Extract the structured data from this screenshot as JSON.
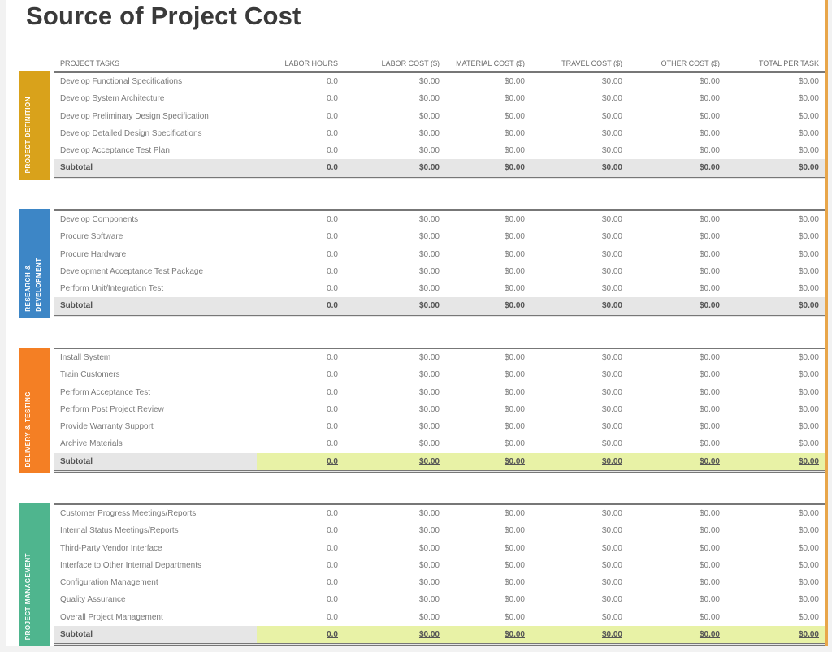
{
  "title": "Source of Project Cost",
  "columns": {
    "task": "PROJECT TASKS",
    "labor_hours": "LABOR HOURS",
    "labor_cost": "LABOR COST ($)",
    "material_cost": "MATERIAL COST ($)",
    "travel_cost": "TRAVEL COST ($)",
    "other_cost": "OTHER COST ($)",
    "total": "TOTAL PER TASK"
  },
  "colors": {
    "phase1": "#d9a21b",
    "phase2": "#3d86c6",
    "phase3": "#f47f24",
    "phase4": "#4fb58e",
    "subtotal_bg": "#e6e6e6",
    "highlight": "#e8f2a6"
  },
  "sections": [
    {
      "label": "Project Definition",
      "rows": [
        {
          "task": "Develop Functional Specifications",
          "hours": "0.0",
          "labor": "$0.00",
          "material": "$0.00",
          "travel": "$0.00",
          "other": "$0.00",
          "total": "$0.00"
        },
        {
          "task": "Develop System Architecture",
          "hours": "0.0",
          "labor": "$0.00",
          "material": "$0.00",
          "travel": "$0.00",
          "other": "$0.00",
          "total": "$0.00"
        },
        {
          "task": "Develop Preliminary Design Specification",
          "hours": "0.0",
          "labor": "$0.00",
          "material": "$0.00",
          "travel": "$0.00",
          "other": "$0.00",
          "total": "$0.00"
        },
        {
          "task": "Develop Detailed Design Specifications",
          "hours": "0.0",
          "labor": "$0.00",
          "material": "$0.00",
          "travel": "$0.00",
          "other": "$0.00",
          "total": "$0.00"
        },
        {
          "task": "Develop Acceptance Test Plan",
          "hours": "0.0",
          "labor": "$0.00",
          "material": "$0.00",
          "travel": "$0.00",
          "other": "$0.00",
          "total": "$0.00"
        }
      ],
      "subtotal": {
        "task": "Subtotal",
        "hours": "0.0",
        "labor": "$0.00",
        "material": "$0.00",
        "travel": "$0.00",
        "other": "$0.00",
        "total": "$0.00"
      }
    },
    {
      "label": "Research & Development",
      "rows": [
        {
          "task": "Develop Components",
          "hours": "0.0",
          "labor": "$0.00",
          "material": "$0.00",
          "travel": "$0.00",
          "other": "$0.00",
          "total": "$0.00"
        },
        {
          "task": "Procure Software",
          "hours": "0.0",
          "labor": "$0.00",
          "material": "$0.00",
          "travel": "$0.00",
          "other": "$0.00",
          "total": "$0.00"
        },
        {
          "task": "Procure Hardware",
          "hours": "0.0",
          "labor": "$0.00",
          "material": "$0.00",
          "travel": "$0.00",
          "other": "$0.00",
          "total": "$0.00"
        },
        {
          "task": "Development Acceptance Test Package",
          "hours": "0.0",
          "labor": "$0.00",
          "material": "$0.00",
          "travel": "$0.00",
          "other": "$0.00",
          "total": "$0.00"
        },
        {
          "task": "Perform Unit/Integration Test",
          "hours": "0.0",
          "labor": "$0.00",
          "material": "$0.00",
          "travel": "$0.00",
          "other": "$0.00",
          "total": "$0.00"
        }
      ],
      "subtotal": {
        "task": "Subtotal",
        "hours": "0.0",
        "labor": "$0.00",
        "material": "$0.00",
        "travel": "$0.00",
        "other": "$0.00",
        "total": "$0.00"
      }
    },
    {
      "label": "Delivery & Testing",
      "rows": [
        {
          "task": "Install System",
          "hours": "0.0",
          "labor": "$0.00",
          "material": "$0.00",
          "travel": "$0.00",
          "other": "$0.00",
          "total": "$0.00"
        },
        {
          "task": "Train Customers",
          "hours": "0.0",
          "labor": "$0.00",
          "material": "$0.00",
          "travel": "$0.00",
          "other": "$0.00",
          "total": "$0.00"
        },
        {
          "task": "Perform Acceptance Test",
          "hours": "0.0",
          "labor": "$0.00",
          "material": "$0.00",
          "travel": "$0.00",
          "other": "$0.00",
          "total": "$0.00"
        },
        {
          "task": "Perform Post Project Review",
          "hours": "0.0",
          "labor": "$0.00",
          "material": "$0.00",
          "travel": "$0.00",
          "other": "$0.00",
          "total": "$0.00"
        },
        {
          "task": "Provide Warranty Support",
          "hours": "0.0",
          "labor": "$0.00",
          "material": "$0.00",
          "travel": "$0.00",
          "other": "$0.00",
          "total": "$0.00"
        },
        {
          "task": "Archive Materials",
          "hours": "0.0",
          "labor": "$0.00",
          "material": "$0.00",
          "travel": "$0.00",
          "other": "$0.00",
          "total": "$0.00"
        }
      ],
      "subtotal": {
        "task": "Subtotal",
        "hours": "0.0",
        "labor": "$0.00",
        "material": "$0.00",
        "travel": "$0.00",
        "other": "$0.00",
        "total": "$0.00"
      }
    },
    {
      "label": "Project Management",
      "rows": [
        {
          "task": "Customer Progress Meetings/Reports",
          "hours": "0.0",
          "labor": "$0.00",
          "material": "$0.00",
          "travel": "$0.00",
          "other": "$0.00",
          "total": "$0.00"
        },
        {
          "task": "Internal Status Meetings/Reports",
          "hours": "0.0",
          "labor": "$0.00",
          "material": "$0.00",
          "travel": "$0.00",
          "other": "$0.00",
          "total": "$0.00"
        },
        {
          "task": "Third-Party Vendor Interface",
          "hours": "0.0",
          "labor": "$0.00",
          "material": "$0.00",
          "travel": "$0.00",
          "other": "$0.00",
          "total": "$0.00"
        },
        {
          "task": "Interface to Other Internal Departments",
          "hours": "0.0",
          "labor": "$0.00",
          "material": "$0.00",
          "travel": "$0.00",
          "other": "$0.00",
          "total": "$0.00"
        },
        {
          "task": "Configuration Management",
          "hours": "0.0",
          "labor": "$0.00",
          "material": "$0.00",
          "travel": "$0.00",
          "other": "$0.00",
          "total": "$0.00"
        },
        {
          "task": "Quality Assurance",
          "hours": "0.0",
          "labor": "$0.00",
          "material": "$0.00",
          "travel": "$0.00",
          "other": "$0.00",
          "total": "$0.00"
        },
        {
          "task": "Overall Project Management",
          "hours": "0.0",
          "labor": "$0.00",
          "material": "$0.00",
          "travel": "$0.00",
          "other": "$0.00",
          "total": "$0.00"
        }
      ],
      "subtotal": {
        "task": "Subtotal",
        "hours": "0.0",
        "labor": "$0.00",
        "material": "$0.00",
        "travel": "$0.00",
        "other": "$0.00",
        "total": "$0.00"
      }
    }
  ]
}
